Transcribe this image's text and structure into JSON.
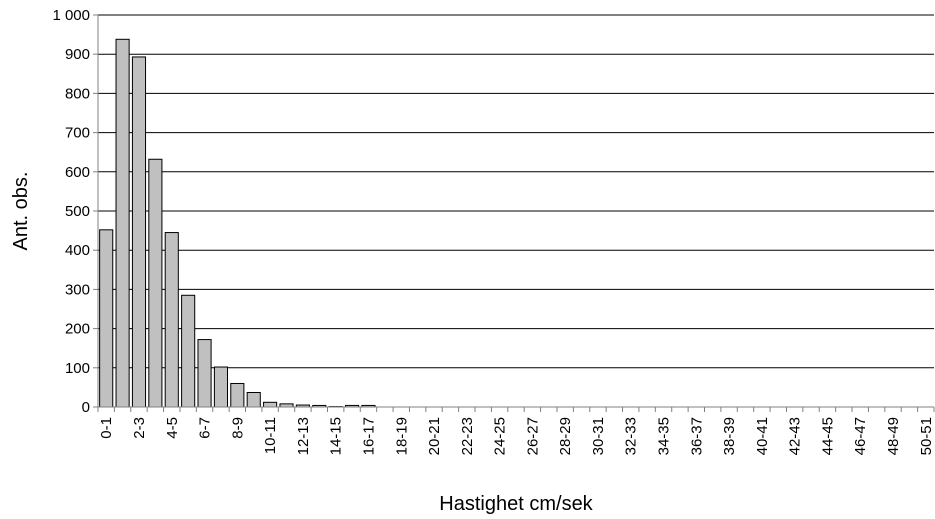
{
  "chart_data": {
    "type": "bar",
    "categories": [
      "0-1",
      null,
      "2-3",
      null,
      "4-5",
      null,
      "6-7",
      null,
      "8-9",
      null,
      "10-11",
      null,
      "12-13",
      null,
      "14-15",
      null,
      "16-17",
      null,
      "18-19",
      null,
      "20-21",
      null,
      "22-23",
      null,
      "24-25",
      null,
      "26-27",
      null,
      "28-29",
      null,
      "30-31",
      null,
      "32-33",
      null,
      "34-35",
      null,
      "36-37",
      null,
      "38-39",
      null,
      "40-41",
      null,
      "42-43",
      null,
      "44-45",
      null,
      "46-47",
      null,
      "48-49",
      null,
      "50-51"
    ],
    "values": [
      452,
      938,
      893,
      632,
      445,
      285,
      172,
      102,
      60,
      37,
      12,
      8,
      5,
      4,
      1,
      4,
      4,
      0,
      0,
      0,
      0,
      0,
      0,
      0,
      0,
      0,
      0,
      0,
      0,
      0,
      0,
      0,
      0,
      0,
      0,
      0,
      0,
      0,
      0,
      0,
      0,
      0,
      0,
      0,
      0,
      0,
      0,
      0,
      0,
      0,
      0
    ],
    "color": "#c0c0c0",
    "ylim": [
      0,
      1000
    ],
    "yticks": [
      0,
      100,
      200,
      300,
      400,
      500,
      600,
      700,
      800,
      900,
      {
        "value": 1000,
        "label": "1 000"
      }
    ],
    "grid": true,
    "xlabel": "Hastighet cm/sek",
    "ylabel": "Ant. obs."
  }
}
